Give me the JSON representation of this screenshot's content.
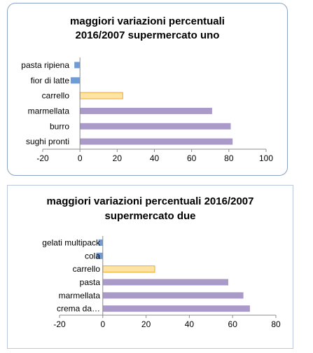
{
  "chart_data": [
    {
      "type": "bar",
      "orientation": "horizontal",
      "title_lines": [
        "maggiori variazioni percentuali",
        "2016/2007 supermercato uno"
      ],
      "categories": [
        "pasta ripiena",
        "fior di latte",
        "carrello",
        "marmellata",
        "burro",
        "sughi pronti"
      ],
      "values": [
        -3,
        -5,
        23,
        71,
        81,
        82
      ],
      "bar_colors": [
        "#6f9bd6",
        "#6f9bd6",
        "#fde4a5",
        "#a99ac9",
        "#a99ac9",
        "#a99ac9"
      ],
      "xlim": [
        -20,
        100
      ],
      "xticks": [
        "-20",
        "0",
        "20",
        "40",
        "60",
        "80",
        "100"
      ],
      "grid": false,
      "xlabel": "",
      "ylabel": ""
    },
    {
      "type": "bar",
      "orientation": "horizontal",
      "title_lines": [
        "maggiori variazioni percentuali 2016/2007",
        "supermercato due"
      ],
      "categories": [
        "gelati multipack",
        "cola",
        "carrello",
        "pasta",
        "marmellata",
        "crema da…"
      ],
      "values": [
        -2,
        -3,
        24,
        58,
        65,
        68
      ],
      "bar_colors": [
        "#6f9bd6",
        "#6f9bd6",
        "#fde4a5",
        "#a99ac9",
        "#a99ac9",
        "#a99ac9"
      ],
      "xlim": [
        -20,
        80
      ],
      "xticks": [
        "-20",
        "0",
        "20",
        "40",
        "60",
        "80"
      ],
      "grid": false,
      "xlabel": "",
      "ylabel": ""
    }
  ]
}
